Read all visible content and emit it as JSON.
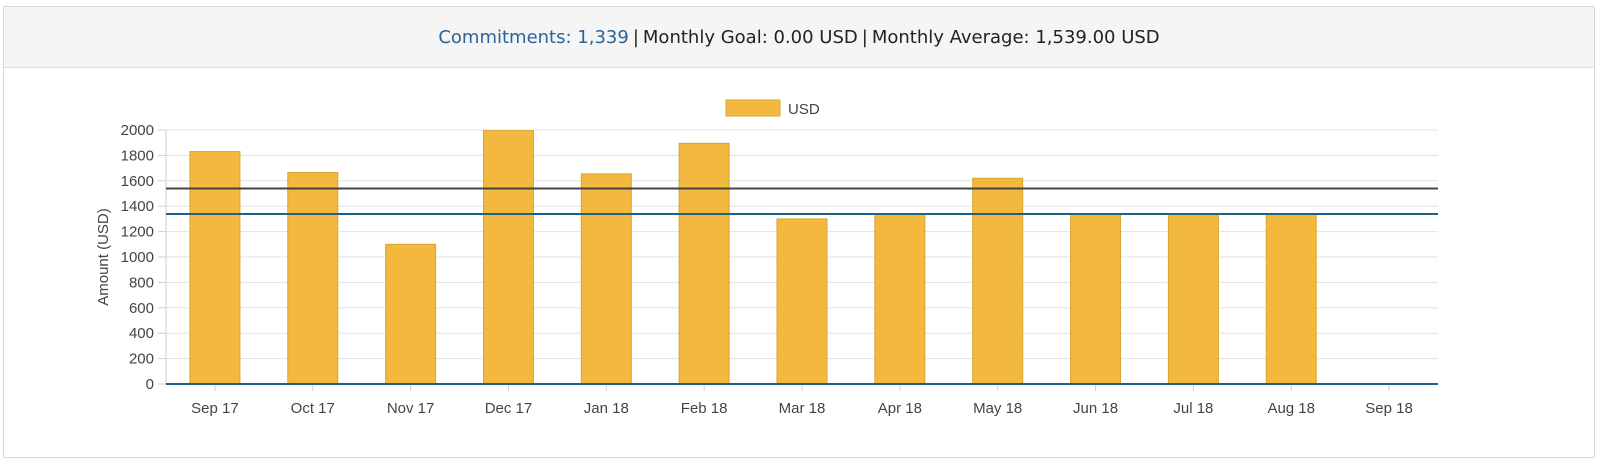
{
  "header": {
    "commitments_label": "Commitments:",
    "commitments_value": "1,339",
    "separator": "|",
    "goal_text": "Monthly Goal: 0.00 USD",
    "average_text": "Monthly Average: 1,539.00 USD"
  },
  "chart_data": {
    "type": "bar",
    "categories": [
      "Sep 17",
      "Oct 17",
      "Nov 17",
      "Dec 17",
      "Jan 18",
      "Feb 18",
      "Mar 18",
      "Apr 18",
      "May 18",
      "Jun 18",
      "Jul 18",
      "Aug 18",
      "Sep 18"
    ],
    "series": [
      {
        "name": "USD",
        "values": [
          1830,
          1665,
          1100,
          1995,
          1655,
          1895,
          1300,
          1335,
          1620,
          1335,
          1335,
          1335,
          0
        ],
        "color": "#f2b93e"
      }
    ],
    "ylabel": "Amount (USD)",
    "xlabel": "",
    "ylim": [
      0,
      2000
    ],
    "yticks": [
      0,
      200,
      400,
      600,
      800,
      1000,
      1200,
      1400,
      1600,
      1800,
      2000
    ],
    "reference_lines": [
      {
        "value": 1539,
        "color": "#444444"
      },
      {
        "value": 1339,
        "color": "#1f5f8b"
      }
    ],
    "legend_position": "top-center",
    "grid": true
  }
}
